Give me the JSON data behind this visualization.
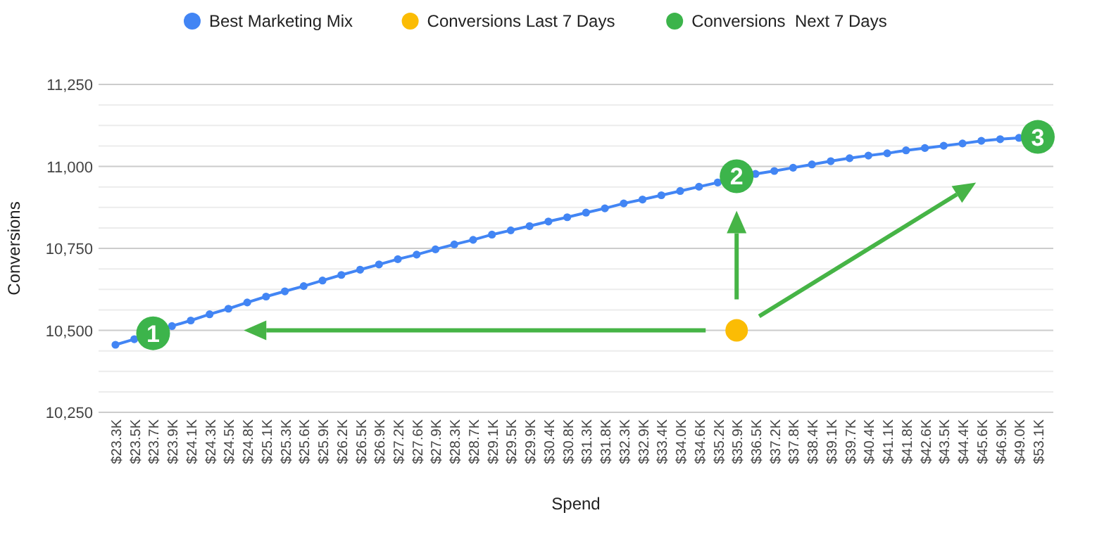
{
  "chart_data": {
    "type": "line",
    "xlabel": "Spend",
    "ylabel": "Conversions",
    "categories": [
      "$23.3K",
      "$23.5K",
      "$23.7K",
      "$23.9K",
      "$24.1K",
      "$24.3K",
      "$24.5K",
      "$24.8K",
      "$25.1K",
      "$25.3K",
      "$25.6K",
      "$25.9K",
      "$26.2K",
      "$26.5K",
      "$26.9K",
      "$27.2K",
      "$27.6K",
      "$27.9K",
      "$28.3K",
      "$28.7K",
      "$29.1K",
      "$29.5K",
      "$29.9K",
      "$30.4K",
      "$30.8K",
      "$31.3K",
      "$31.8K",
      "$32.3K",
      "$32.9K",
      "$33.4K",
      "$34.0K",
      "$34.6K",
      "$35.2K",
      "$35.9K",
      "$36.5K",
      "$37.2K",
      "$37.8K",
      "$38.4K",
      "$39.1K",
      "$39.7K",
      "$40.4K",
      "$41.1K",
      "$41.8K",
      "$42.6K",
      "$43.5K",
      "$44.4K",
      "$45.6K",
      "$46.9K",
      "$49.0K",
      "$53.1K"
    ],
    "series": [
      {
        "name": "Best Marketing Mix",
        "color": "#4285f4",
        "values": [
          10456,
          10473,
          10491,
          10513,
          10530,
          10549,
          10566,
          10585,
          10603,
          10619,
          10635,
          10652,
          10669,
          10685,
          10701,
          10717,
          10731,
          10747,
          10762,
          10776,
          10792,
          10805,
          10818,
          10832,
          10845,
          10859,
          10872,
          10887,
          10899,
          10912,
          10925,
          10938,
          10951,
          10964,
          10977,
          10986,
          10996,
          11006,
          11016,
          11025,
          11033,
          11040,
          11049,
          11056,
          11063,
          11070,
          11078,
          11083,
          11087,
          11093
        ]
      },
      {
        "name": "Conversions Last 7 Days",
        "type": "scatter",
        "color": "#fbbc04",
        "values": [
          null,
          null,
          null,
          null,
          null,
          null,
          null,
          null,
          null,
          null,
          null,
          null,
          null,
          null,
          null,
          null,
          null,
          null,
          null,
          null,
          null,
          null,
          null,
          null,
          null,
          null,
          null,
          null,
          null,
          null,
          null,
          null,
          null,
          10500,
          null,
          null,
          null,
          null,
          null,
          null,
          null,
          null,
          null,
          null,
          null,
          null,
          null,
          null,
          null,
          null
        ]
      },
      {
        "name": "Conversions  Next 7 Days",
        "type": "scatter",
        "color": "#3cb44b",
        "values": [
          null,
          null,
          10491,
          null,
          null,
          null,
          null,
          null,
          null,
          null,
          null,
          null,
          null,
          null,
          null,
          null,
          null,
          null,
          null,
          null,
          null,
          null,
          null,
          null,
          null,
          null,
          null,
          null,
          null,
          null,
          null,
          null,
          null,
          10970,
          null,
          null,
          null,
          null,
          null,
          null,
          null,
          null,
          null,
          null,
          null,
          null,
          null,
          null,
          null,
          11090
        ]
      }
    ],
    "annotations": [
      {
        "text": "1",
        "x": "$23.7K",
        "y": 10491
      },
      {
        "text": "2",
        "x": "$35.9K",
        "y": 10970
      },
      {
        "text": "3",
        "x": "$53.1K",
        "y": 11090
      }
    ],
    "ylim": [
      10250,
      11250
    ],
    "yticks": [
      {
        "value": 10250,
        "label": "10,250"
      },
      {
        "value": 10312.5,
        "label": null
      },
      {
        "value": 10375,
        "label": null
      },
      {
        "value": 10437.5,
        "label": null
      },
      {
        "value": 10500,
        "label": "10,500"
      },
      {
        "value": 10562.5,
        "label": null
      },
      {
        "value": 10625,
        "label": null
      },
      {
        "value": 10687.5,
        "label": null
      },
      {
        "value": 10750,
        "label": "10,750"
      },
      {
        "value": 10812.5,
        "label": null
      },
      {
        "value": 10875,
        "label": null
      },
      {
        "value": 10937.5,
        "label": null
      },
      {
        "value": 11000,
        "label": "11,000"
      },
      {
        "value": 11062.5,
        "label": null
      },
      {
        "value": 11125,
        "label": null
      },
      {
        "value": 11187.5,
        "label": null
      },
      {
        "value": 11250,
        "label": "11,250"
      }
    ],
    "grid": "y",
    "legend": "top",
    "marker": "circle",
    "line_style": "solid"
  }
}
